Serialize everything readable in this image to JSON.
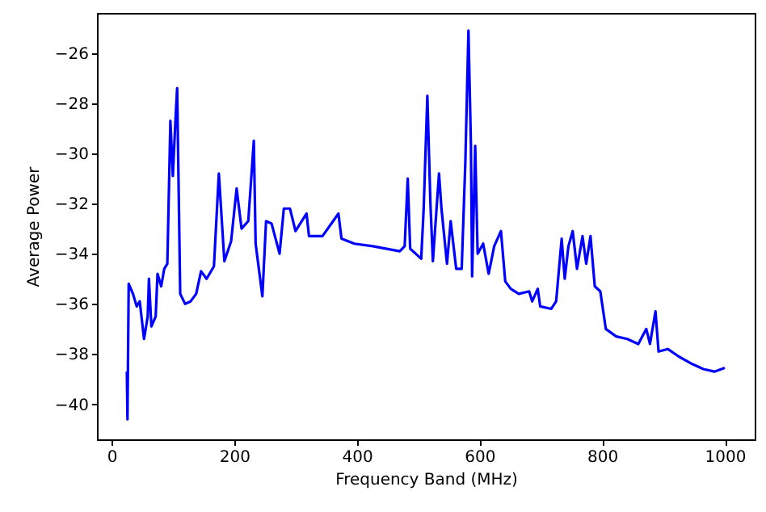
{
  "chart_data": {
    "type": "line",
    "xlabel": "Frequency Band (MHz)",
    "ylabel": "Average Power",
    "x": [
      25,
      26,
      28,
      35,
      41,
      46,
      53,
      59,
      61,
      65,
      72,
      75,
      81,
      86,
      91,
      96,
      100,
      104,
      107,
      112,
      120,
      129,
      138,
      146,
      155,
      167,
      175,
      184,
      195,
      204,
      212,
      223,
      232,
      235,
      246,
      252,
      261,
      274,
      281,
      291,
      300,
      318,
      322,
      344,
      370,
      375,
      396,
      426,
      470,
      478,
      483,
      487,
      505,
      509,
      515,
      520,
      524,
      534,
      538,
      547,
      553,
      562,
      571,
      577,
      582,
      586,
      588,
      593,
      597,
      606,
      615,
      624,
      635,
      642,
      651,
      664,
      681,
      686,
      695,
      699,
      717,
      725,
      734,
      739,
      745,
      752,
      759,
      768,
      774,
      781,
      788,
      797,
      806,
      823,
      841,
      859,
      872,
      878,
      887,
      892,
      907,
      925,
      947,
      965,
      983,
      1000
    ],
    "series": [
      {
        "color": "#0000ff",
        "values": [
          -38.7,
          -40.6,
          -35.2,
          -35.6,
          -36.1,
          -35.9,
          -37.4,
          -36.5,
          -35.0,
          -36.9,
          -36.5,
          -34.8,
          -35.3,
          -34.6,
          -34.4,
          -28.7,
          -30.9,
          -28.8,
          -27.4,
          -35.6,
          -36.0,
          -35.9,
          -35.6,
          -34.7,
          -35.0,
          -34.5,
          -30.8,
          -34.3,
          -33.5,
          -31.4,
          -33.0,
          -32.7,
          -29.5,
          -33.6,
          -35.7,
          -32.7,
          -32.8,
          -34.0,
          -32.2,
          -32.2,
          -33.1,
          -32.4,
          -33.3,
          -33.3,
          -32.4,
          -33.4,
          -33.6,
          -33.7,
          -33.9,
          -33.7,
          -31.0,
          -33.8,
          -34.2,
          -32.2,
          -27.7,
          -32.0,
          -34.3,
          -30.8,
          -32.2,
          -34.4,
          -32.7,
          -34.6,
          -34.6,
          -30.3,
          -25.1,
          -29.6,
          -34.9,
          -29.7,
          -34.0,
          -33.6,
          -34.8,
          -33.7,
          -33.1,
          -35.1,
          -35.4,
          -35.6,
          -35.5,
          -35.9,
          -35.4,
          -36.1,
          -36.2,
          -35.9,
          -33.4,
          -35.0,
          -33.7,
          -33.1,
          -34.6,
          -33.3,
          -34.4,
          -33.3,
          -35.3,
          -35.5,
          -37.0,
          -37.3,
          -37.4,
          -37.6,
          -37.0,
          -37.6,
          -36.3,
          -37.9,
          -37.8,
          -38.1,
          -38.4,
          -38.6,
          -38.7,
          -38.55
        ]
      }
    ],
    "xlim": [
      -23.75,
      1048.75
    ],
    "ylim": [
      -41.4,
      -24.4
    ],
    "xticks": [
      0,
      200,
      400,
      600,
      800,
      1000
    ],
    "yticks": [
      -40,
      -38,
      -36,
      -34,
      -32,
      -30,
      -28,
      -26
    ],
    "grid": false
  }
}
